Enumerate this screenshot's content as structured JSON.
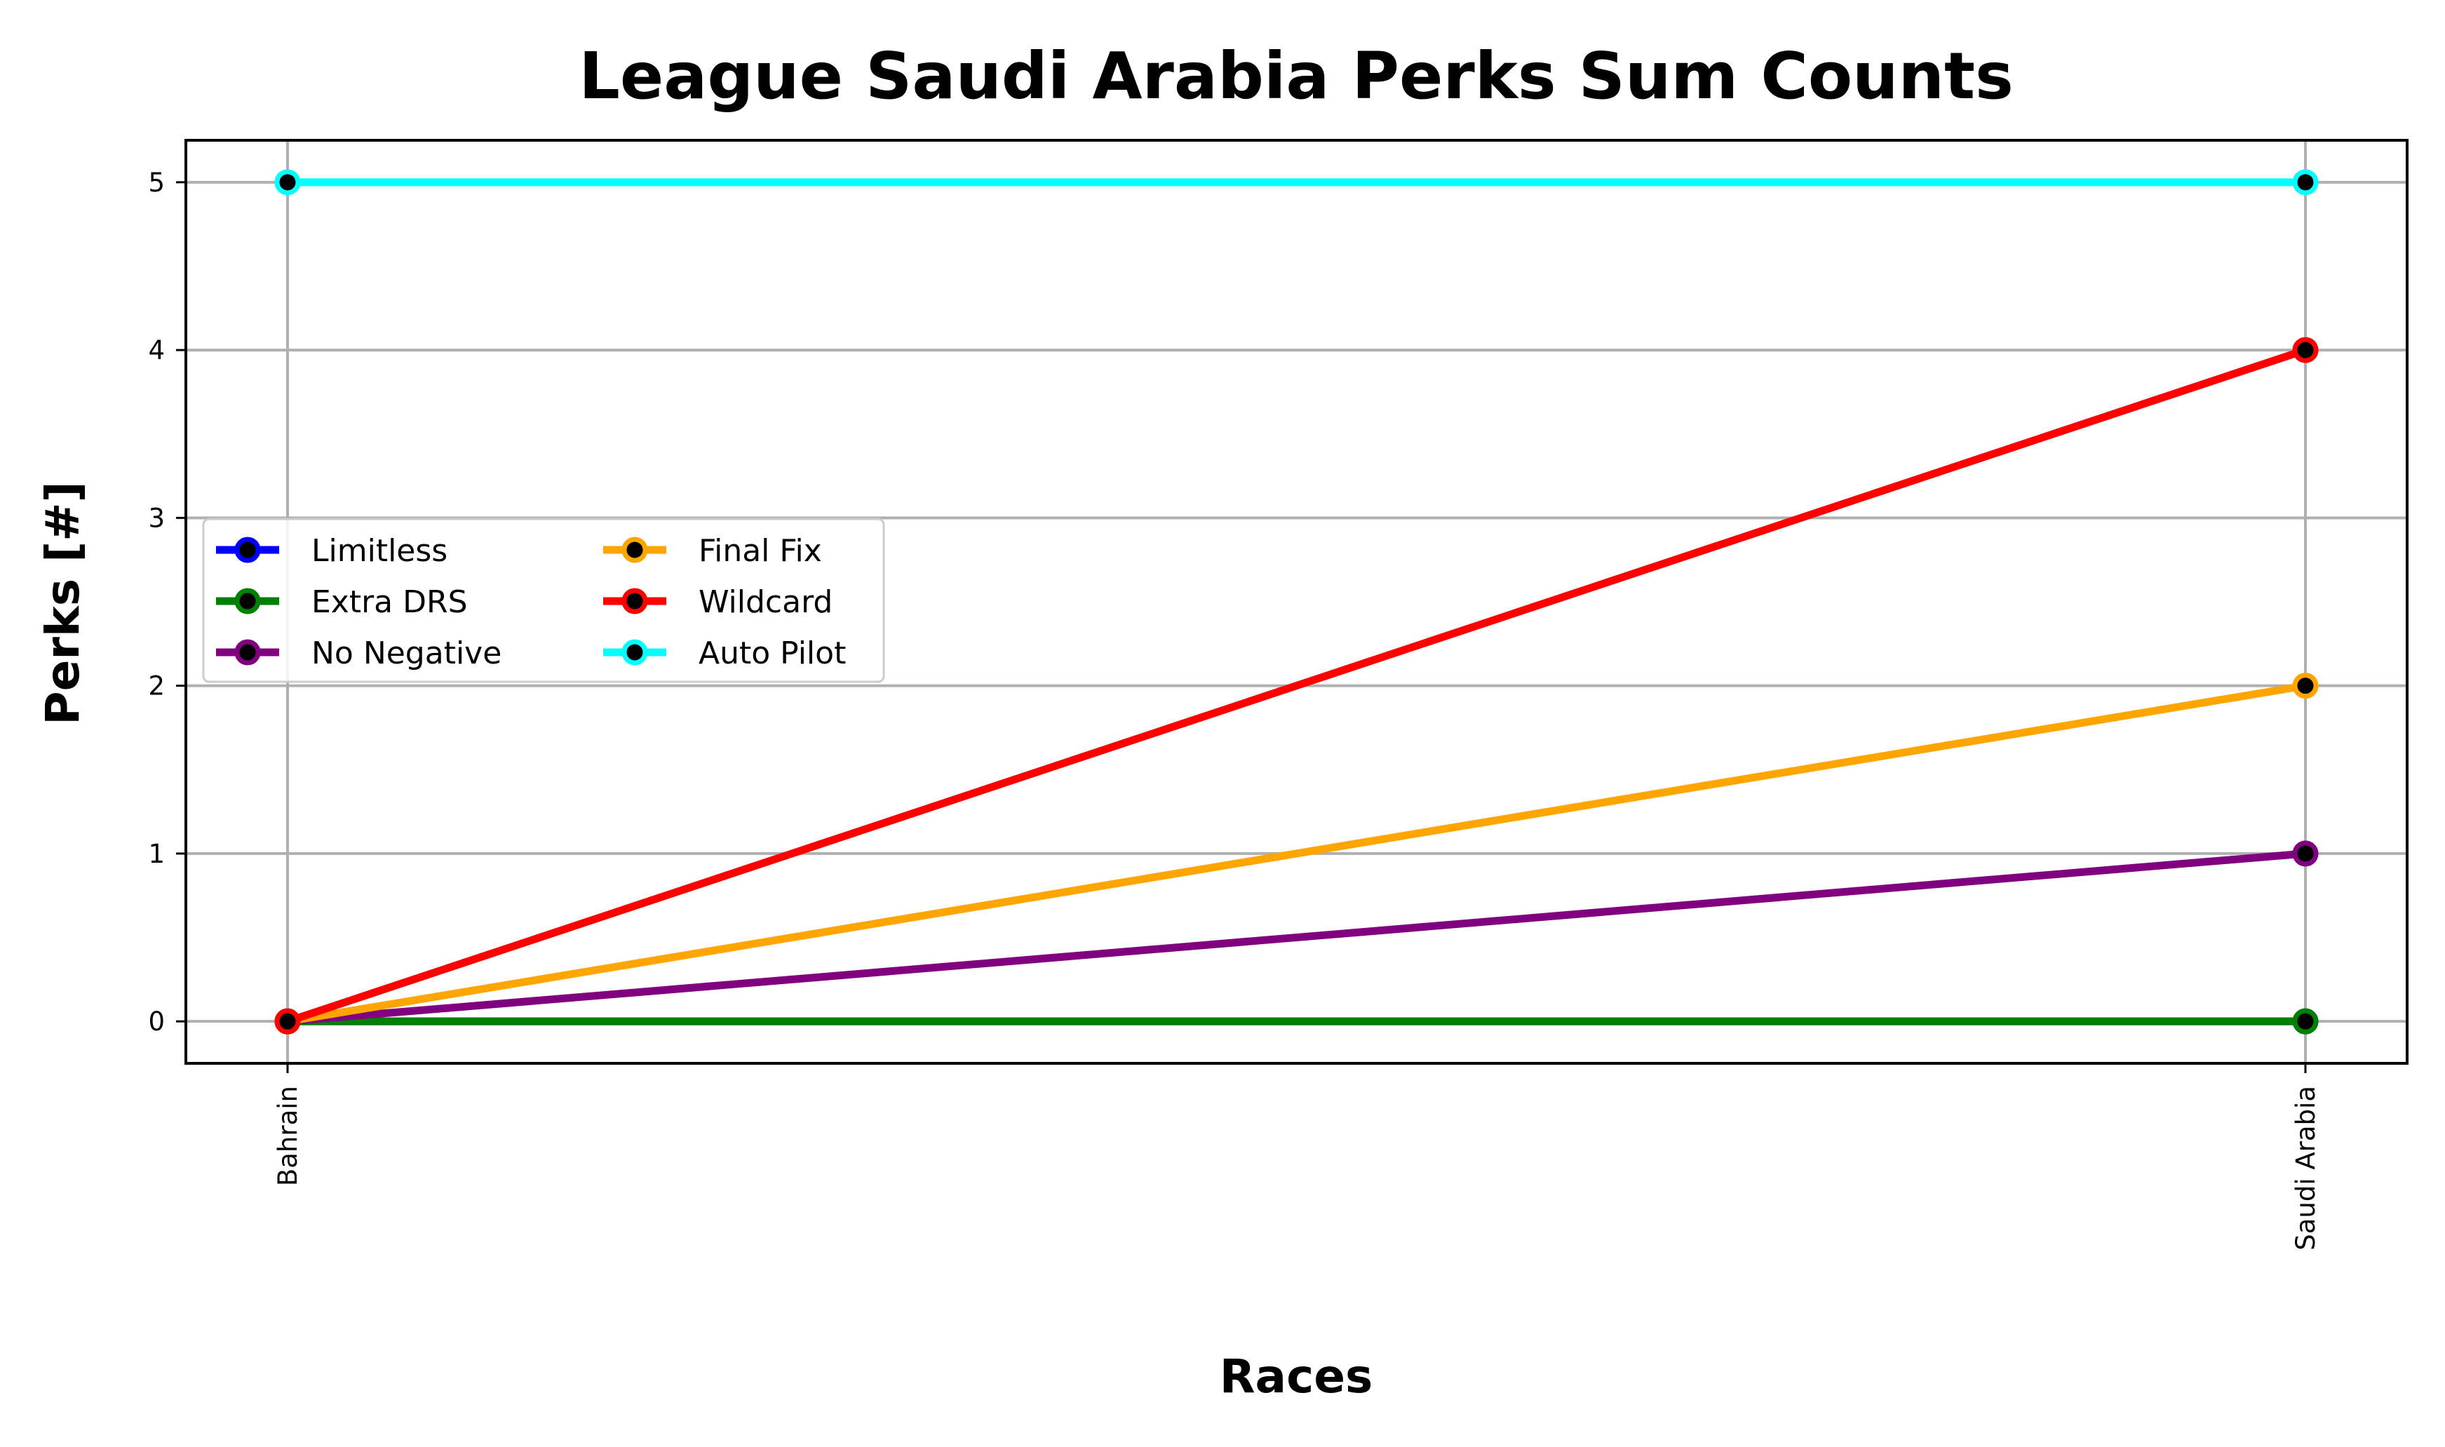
{
  "chart_data": {
    "type": "line",
    "title": "League Saudi Arabia Perks Sum Counts",
    "xlabel": "Races",
    "ylabel": "Perks [#]",
    "categories": [
      "Bahrain",
      "Saudi Arabia"
    ],
    "yticks": [
      0,
      1,
      2,
      3,
      4,
      5
    ],
    "ylim": [
      -0.25,
      5.25
    ],
    "grid": true,
    "legend_position": "center-left",
    "legend_columns": 2,
    "series": [
      {
        "name": "Limitless",
        "values": [
          0,
          0
        ],
        "color": "#0000ff"
      },
      {
        "name": "Extra DRS",
        "values": [
          0,
          0
        ],
        "color": "#008000"
      },
      {
        "name": "No Negative",
        "values": [
          0,
          1
        ],
        "color": "#800080"
      },
      {
        "name": "Final Fix",
        "values": [
          0,
          2
        ],
        "color": "#ffa500"
      },
      {
        "name": "Wildcard",
        "values": [
          0,
          4
        ],
        "color": "#ff0000"
      },
      {
        "name": "Auto Pilot",
        "values": [
          5,
          5
        ],
        "color": "#00ffff"
      }
    ],
    "marker_color": "#000000",
    "grid_color": "#b0b0b0"
  }
}
